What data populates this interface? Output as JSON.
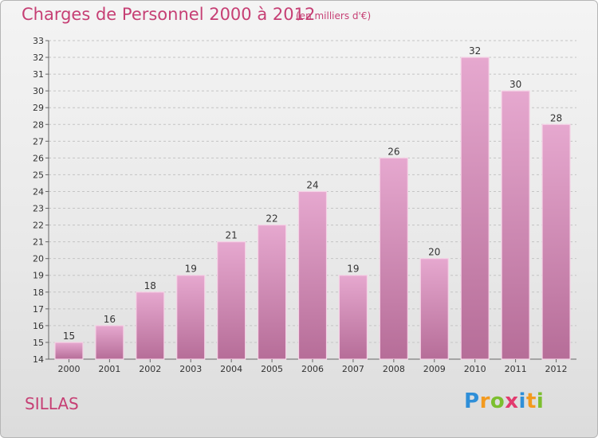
{
  "header": {
    "title": "Charges de Personnel 2000 à 2012",
    "subtitle": "(en milliers d'€)"
  },
  "footer": {
    "commune": "SILLAS",
    "logo_text": "Proxiti",
    "logo_letters": [
      {
        "ch": "P",
        "color": "#2f8fd8"
      },
      {
        "ch": "r",
        "color": "#f39a1e"
      },
      {
        "ch": "o",
        "color": "#7cbf2f"
      },
      {
        "ch": "x",
        "color": "#e23a6e"
      },
      {
        "ch": "i",
        "color": "#2f8fd8"
      },
      {
        "ch": "t",
        "color": "#f39a1e"
      },
      {
        "ch": "i",
        "color": "#7cbf2f"
      }
    ]
  },
  "colors": {
    "bar_fill_top": "#e6a8cf",
    "bar_fill_bottom": "#b66d98",
    "bar_stroke": "#f5d2e6",
    "grid": "#c4c4c4",
    "axis": "#666666",
    "text": "#333333",
    "accent": "#c63f74"
  },
  "chart_data": {
    "type": "bar",
    "title": "Charges de Personnel 2000 à 2012",
    "subtitle": "(en milliers d'€)",
    "xlabel": "",
    "ylabel": "",
    "categories": [
      "2000",
      "2001",
      "2002",
      "2003",
      "2004",
      "2005",
      "2006",
      "2007",
      "2008",
      "2009",
      "2010",
      "2011",
      "2012"
    ],
    "values": [
      15,
      16,
      18,
      19,
      21,
      22,
      24,
      19,
      26,
      20,
      32,
      30,
      28
    ],
    "ylim": [
      14,
      33
    ],
    "yticks": [
      14,
      15,
      16,
      17,
      18,
      19,
      20,
      21,
      22,
      23,
      24,
      25,
      26,
      27,
      28,
      29,
      30,
      31,
      32,
      33
    ],
    "grid": "horizontal dashed",
    "data_labels": true
  }
}
